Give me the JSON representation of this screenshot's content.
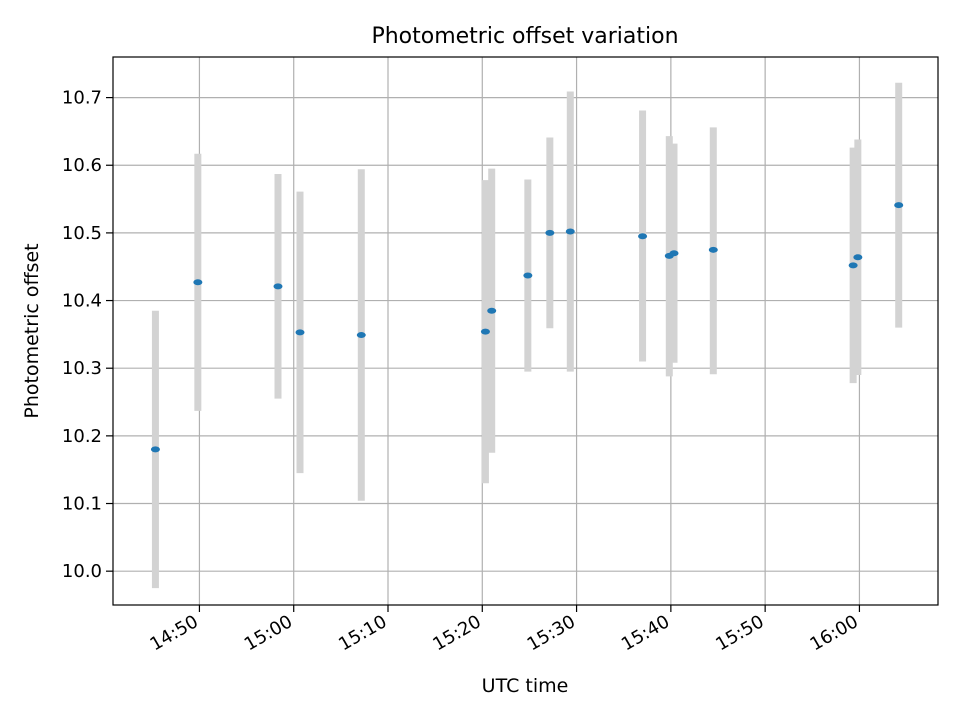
{
  "chart_data": {
    "type": "scatter",
    "title": "Photometric offset variation",
    "xlabel": "UTC time",
    "ylabel": "Photometric offset",
    "x_ticks": [
      "14:50",
      "15:00",
      "15:10",
      "15:20",
      "15:30",
      "15:40",
      "15:50",
      "16:00"
    ],
    "y_ticks": [
      "10.0",
      "10.1",
      "10.2",
      "10.3",
      "10.4",
      "10.5",
      "10.6",
      "10.7"
    ],
    "xlim": [
      "14:40:50",
      "16:08:20"
    ],
    "ylim": [
      9.95,
      10.76
    ],
    "grid": true,
    "colors": {
      "marker": "#1f77b4",
      "errorbar": "#d3d3d3",
      "grid": "#b0b0b0"
    },
    "series": [
      {
        "points": [
          {
            "x": "14:45:20",
            "y": 10.18,
            "ylow": 9.975,
            "yhigh": 10.385
          },
          {
            "x": "14:49:50",
            "y": 10.427,
            "ylow": 10.237,
            "yhigh": 10.617
          },
          {
            "x": "14:58:20",
            "y": 10.421,
            "ylow": 10.255,
            "yhigh": 10.587
          },
          {
            "x": "15:00:40",
            "y": 10.353,
            "ylow": 10.145,
            "yhigh": 10.561
          },
          {
            "x": "15:07:10",
            "y": 10.349,
            "ylow": 10.104,
            "yhigh": 10.594
          },
          {
            "x": "15:20:20",
            "y": 10.354,
            "ylow": 10.13,
            "yhigh": 10.578
          },
          {
            "x": "15:21:00",
            "y": 10.385,
            "ylow": 10.175,
            "yhigh": 10.595
          },
          {
            "x": "15:24:50",
            "y": 10.437,
            "ylow": 10.295,
            "yhigh": 10.579
          },
          {
            "x": "15:27:10",
            "y": 10.5,
            "ylow": 10.359,
            "yhigh": 10.641
          },
          {
            "x": "15:29:20",
            "y": 10.502,
            "ylow": 10.295,
            "yhigh": 10.709
          },
          {
            "x": "15:37:00",
            "y": 10.495,
            "ylow": 10.31,
            "yhigh": 10.681
          },
          {
            "x": "15:39:50",
            "y": 10.466,
            "ylow": 10.288,
            "yhigh": 10.643
          },
          {
            "x": "15:40:20",
            "y": 10.47,
            "ylow": 10.308,
            "yhigh": 10.632
          },
          {
            "x": "15:44:30",
            "y": 10.475,
            "ylow": 10.291,
            "yhigh": 10.656
          },
          {
            "x": "15:59:20",
            "y": 10.452,
            "ylow": 10.278,
            "yhigh": 10.626
          },
          {
            "x": "15:59:50",
            "y": 10.464,
            "ylow": 10.29,
            "yhigh": 10.638
          },
          {
            "x": "16:04:10",
            "y": 10.541,
            "ylow": 10.36,
            "yhigh": 10.722
          }
        ]
      }
    ]
  }
}
